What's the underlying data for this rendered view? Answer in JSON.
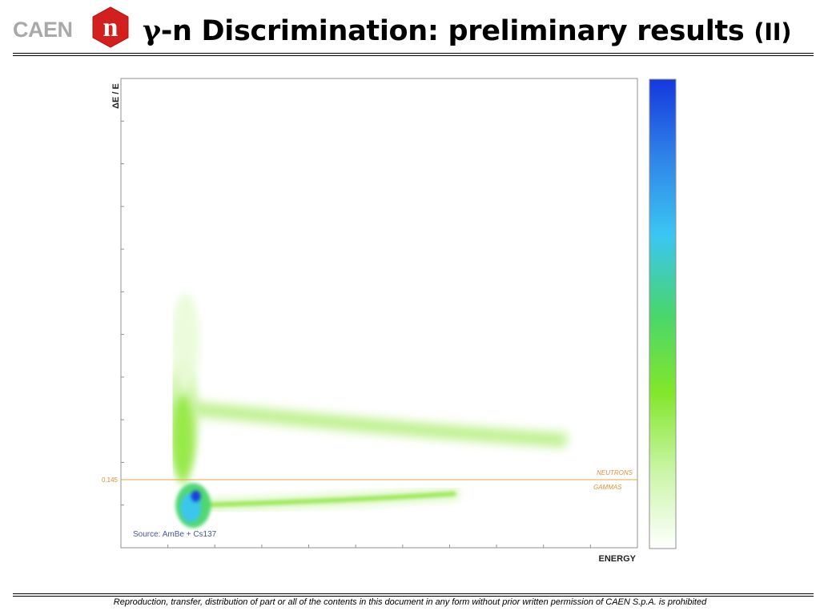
{
  "header": {
    "logo_text": "CAEN",
    "logo_mark": "n",
    "title_symbol": "γ",
    "title_main": "-n Discrimination: preliminary results",
    "title_suffix": "(II)"
  },
  "chart_data": {
    "type": "heatmap",
    "title": "",
    "xlabel": "ENERGY",
    "ylabel": "ΔE / E",
    "xlim": [
      0,
      1
    ],
    "ylim": [
      0,
      1
    ],
    "grid": false,
    "threshold": {
      "value": 0.145,
      "label": "0.145",
      "above_label": "NEUTRONS",
      "below_label": "GAMMAS"
    },
    "annotation": "Source: AmBe + Cs137",
    "colorscale": [
      "#ffffff",
      "#c9f5a5",
      "#82e62a",
      "#49d66e",
      "#3bc6f2",
      "#2f84e8",
      "#1538de"
    ],
    "colorbar": {
      "position": "right",
      "orientation": "vertical"
    },
    "bands": [
      {
        "name": "NEUTRONS",
        "x_start": 0.1,
        "x_end": 0.85,
        "y_center": 0.26,
        "peak_color": "#82e62a"
      },
      {
        "name": "GAMMAS",
        "x_start": 0.1,
        "x_end": 0.66,
        "y_center": 0.095,
        "peak_color": "#1538de"
      }
    ]
  },
  "footer": {
    "text": "Reproduction, transfer, distribution of part or all of the contents in this document in any form without prior written permission of  CAEN S.p.A. is prohibited"
  }
}
